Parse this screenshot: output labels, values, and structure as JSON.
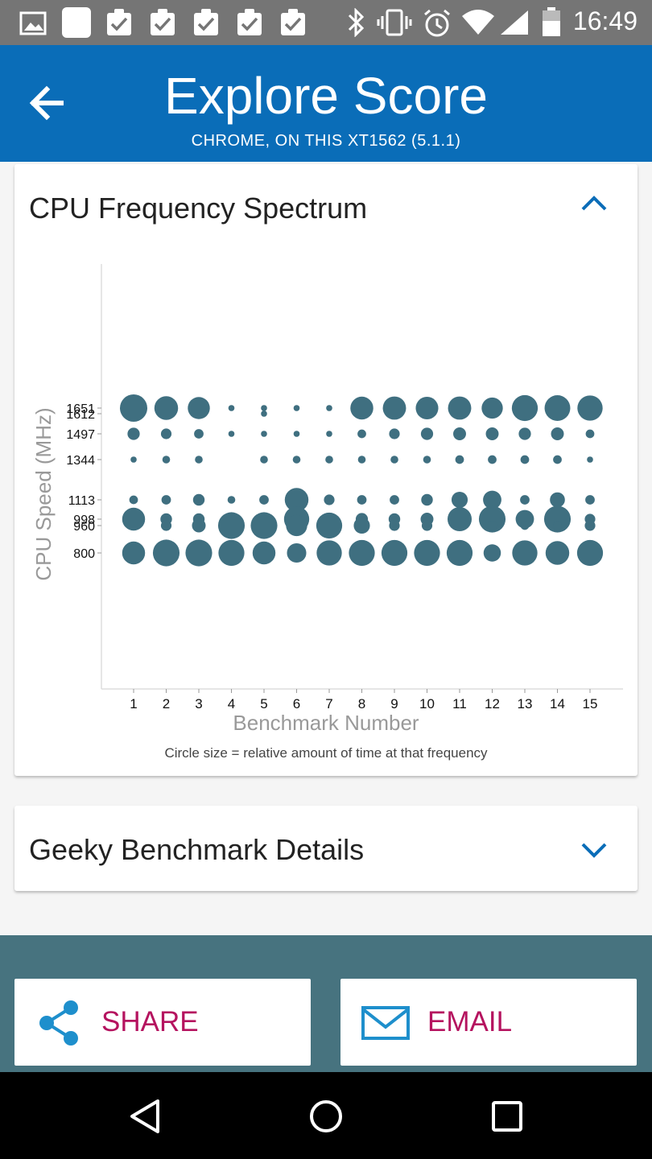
{
  "status_bar": {
    "time": "16:49",
    "icons": [
      "image-icon",
      "blank-notification-icon",
      "clipboard-check-icon",
      "clipboard-check-icon",
      "clipboard-check-icon",
      "clipboard-check-icon",
      "clipboard-check-icon",
      "bluetooth-icon",
      "vibrate-icon",
      "alarm-icon",
      "wifi-icon",
      "signal-icon",
      "battery-icon"
    ]
  },
  "app_bar": {
    "title": "Explore Score",
    "subtitle": "CHROME, ON THIS XT1562 (5.1.1)",
    "back_icon": "arrow-left-icon"
  },
  "cpu_card": {
    "title": "CPU Frequency Spectrum",
    "toggle_icon": "chevron-up-icon",
    "caption": "Circle size = relative amount of time at that frequency"
  },
  "geeky_card": {
    "title": "Geeky Benchmark Details",
    "toggle_icon": "chevron-down-icon"
  },
  "actions": {
    "share_label": "SHARE",
    "share_icon": "share-icon",
    "email_label": "EMAIL",
    "email_icon": "mail-icon"
  },
  "nav_bar": {
    "icons": [
      "back-triangle-icon",
      "home-circle-icon",
      "recents-square-icon"
    ]
  },
  "colors": {
    "app_bar": "#0a6db8",
    "bubble": "#3f6f80",
    "action_bar": "#47737f",
    "action_label": "#b5135f",
    "chevron": "#0a6db8"
  },
  "chart_data": {
    "type": "scatter",
    "xlabel": "Benchmark Number",
    "ylabel": "CPU Speed (MHz)",
    "x_ticks": [
      1,
      2,
      3,
      4,
      5,
      6,
      7,
      8,
      9,
      10,
      11,
      12,
      13,
      14,
      15
    ],
    "y_ticks": [
      800,
      960,
      998,
      1113,
      1344,
      1497,
      1612,
      1651
    ],
    "note": "bubble size = relative amount of time at that frequency (0-1)",
    "series": [
      {
        "frequency": 1651,
        "values": [
          1.0,
          0.75,
          0.65,
          0.05,
          0.05,
          0.05,
          0.05,
          0.7,
          0.72,
          0.68,
          0.72,
          0.6,
          0.9,
          0.88,
          0.85
        ]
      },
      {
        "frequency": 1612,
        "values": [
          0,
          0,
          0,
          0,
          0.05,
          0,
          0,
          0,
          0,
          0,
          0,
          0,
          0,
          0,
          0
        ]
      },
      {
        "frequency": 1497,
        "values": [
          0.2,
          0.15,
          0.12,
          0.05,
          0.05,
          0.05,
          0.05,
          0.1,
          0.15,
          0.2,
          0.22,
          0.22,
          0.2,
          0.22,
          0.1
        ]
      },
      {
        "frequency": 1344,
        "values": [
          0.05,
          0.08,
          0.08,
          0,
          0.08,
          0.08,
          0.08,
          0.08,
          0.08,
          0.08,
          0.1,
          0.1,
          0.1,
          0.1,
          0.05
        ]
      },
      {
        "frequency": 1113,
        "values": [
          0.1,
          0.12,
          0.18,
          0.08,
          0.12,
          0.75,
          0.15,
          0.12,
          0.12,
          0.18,
          0.35,
          0.45,
          0.12,
          0.3,
          0.12
        ]
      },
      {
        "frequency": 998,
        "values": [
          0.7,
          0.18,
          0.18,
          0,
          0,
          0.85,
          0,
          0.2,
          0.18,
          0.22,
          0.78,
          0.95,
          0.45,
          0.95,
          0.15
        ]
      },
      {
        "frequency": 960,
        "values": [
          0,
          0.15,
          0.25,
          0.95,
          0.95,
          0.6,
          0.9,
          0.35,
          0.15,
          0.15,
          0,
          0.12,
          0.1,
          0.1,
          0.15
        ]
      },
      {
        "frequency": 800,
        "values": [
          0.7,
          0.95,
          0.95,
          0.9,
          0.7,
          0.5,
          0.85,
          0.9,
          0.9,
          0.9,
          0.9,
          0.4,
          0.85,
          0.75,
          0.9
        ]
      }
    ]
  }
}
